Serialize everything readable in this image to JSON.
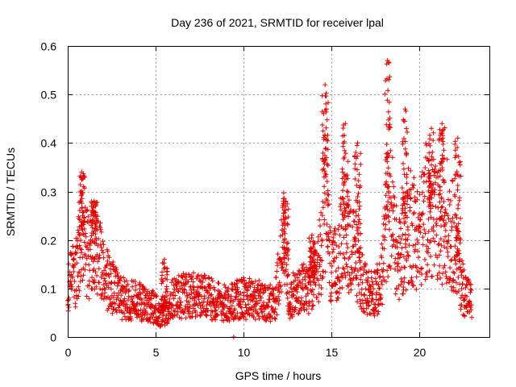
{
  "chart_data": {
    "type": "scatter",
    "title": "Day 236 of 2021, SRMTID for receiver lpal",
    "xlabel": "GPS time / hours",
    "ylabel": "SRMTID / TECUs",
    "xlim": [
      0,
      24
    ],
    "ylim": [
      0,
      0.6
    ],
    "xticks": [
      0,
      5,
      10,
      15,
      20
    ],
    "yticks": [
      0,
      0.1,
      0.2,
      0.3,
      0.4,
      0.5,
      0.6
    ],
    "xtick_labels": [
      "0",
      "5",
      "10",
      "15",
      "20"
    ],
    "ytick_labels": [
      "0",
      "0.1",
      "0.2",
      "0.3",
      "0.4",
      "0.5",
      "0.6"
    ],
    "grid": true,
    "marker": "+",
    "color": "#e00000",
    "series": [
      {
        "name": "SRMTID",
        "envelope": [
          {
            "x": 0.0,
            "y": 0.1
          },
          {
            "x": 0.5,
            "y": 0.14
          },
          {
            "x": 0.9,
            "y": 0.22
          },
          {
            "x": 1.2,
            "y": 0.16
          },
          {
            "x": 1.6,
            "y": 0.2
          },
          {
            "x": 2.0,
            "y": 0.13
          },
          {
            "x": 3.0,
            "y": 0.08
          },
          {
            "x": 4.0,
            "y": 0.075
          },
          {
            "x": 5.0,
            "y": 0.06
          },
          {
            "x": 5.3,
            "y": 0.04
          },
          {
            "x": 6.0,
            "y": 0.08
          },
          {
            "x": 7.0,
            "y": 0.09
          },
          {
            "x": 8.0,
            "y": 0.08
          },
          {
            "x": 9.0,
            "y": 0.07
          },
          {
            "x": 10.0,
            "y": 0.08
          },
          {
            "x": 11.0,
            "y": 0.075
          },
          {
            "x": 11.8,
            "y": 0.07
          },
          {
            "x": 12.3,
            "y": 0.2
          },
          {
            "x": 12.6,
            "y": 0.08
          },
          {
            "x": 13.5,
            "y": 0.1
          },
          {
            "x": 14.2,
            "y": 0.12
          },
          {
            "x": 14.7,
            "y": 0.28
          },
          {
            "x": 15.0,
            "y": 0.12
          },
          {
            "x": 15.8,
            "y": 0.22
          },
          {
            "x": 16.5,
            "y": 0.15
          },
          {
            "x": 17.0,
            "y": 0.09
          },
          {
            "x": 17.8,
            "y": 0.1
          },
          {
            "x": 18.3,
            "y": 0.3
          },
          {
            "x": 18.8,
            "y": 0.15
          },
          {
            "x": 19.5,
            "y": 0.24
          },
          {
            "x": 20.0,
            "y": 0.2
          },
          {
            "x": 20.5,
            "y": 0.28
          },
          {
            "x": 21.0,
            "y": 0.22
          },
          {
            "x": 21.5,
            "y": 0.25
          },
          {
            "x": 22.0,
            "y": 0.2
          },
          {
            "x": 22.5,
            "y": 0.1
          },
          {
            "x": 23.0,
            "y": 0.07
          }
        ],
        "spikes": [
          {
            "x": 0.8,
            "y": 0.34
          },
          {
            "x": 1.5,
            "y": 0.28
          },
          {
            "x": 5.5,
            "y": 0.16
          },
          {
            "x": 12.4,
            "y": 0.28
          },
          {
            "x": 13.9,
            "y": 0.21
          },
          {
            "x": 14.65,
            "y": 0.52
          },
          {
            "x": 15.8,
            "y": 0.44
          },
          {
            "x": 16.5,
            "y": 0.4
          },
          {
            "x": 18.2,
            "y": 0.57
          },
          {
            "x": 19.2,
            "y": 0.47
          },
          {
            "x": 20.7,
            "y": 0.43
          },
          {
            "x": 21.3,
            "y": 0.44
          },
          {
            "x": 22.2,
            "y": 0.41
          }
        ],
        "outliers": [
          {
            "x": 9.45,
            "y": 0.0
          }
        ]
      }
    ]
  }
}
